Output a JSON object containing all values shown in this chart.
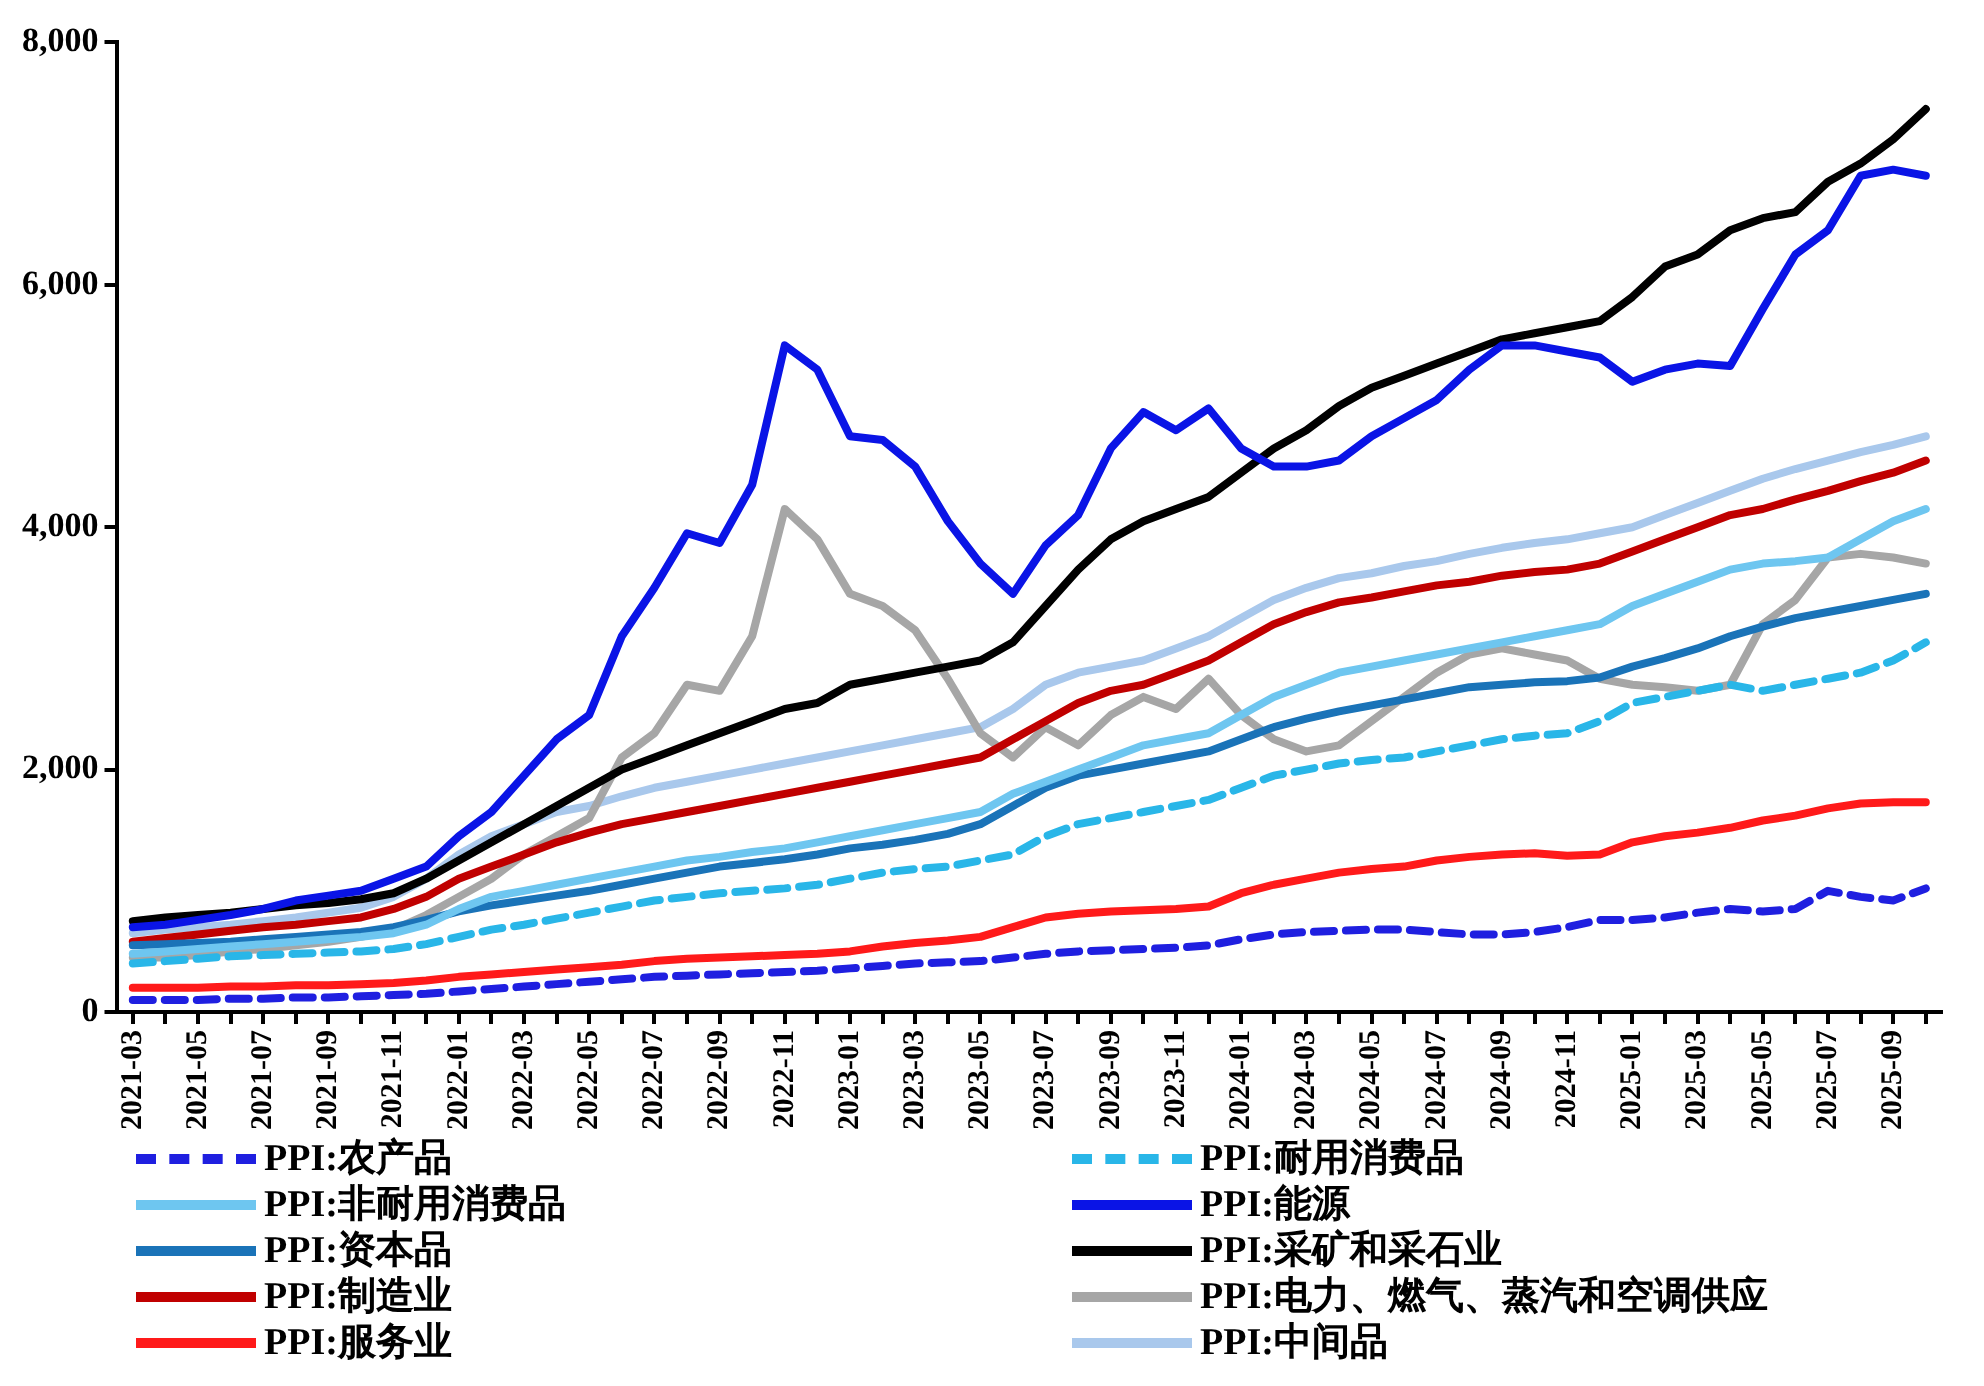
{
  "chart_data": {
    "type": "line",
    "categories": [
      "2021-03",
      null,
      "2021-05",
      null,
      "2021-07",
      null,
      "2021-09",
      null,
      "2021-11",
      null,
      "2022-01",
      null,
      "2022-03",
      null,
      "2022-05",
      null,
      "2022-07",
      null,
      "2022-09",
      null,
      "2022-11",
      null,
      "2023-01",
      null,
      "2023-03",
      null,
      "2023-05",
      null,
      "2023-07",
      null,
      "2023-09",
      null,
      "2023-11",
      null,
      "2024-01",
      null,
      "2024-03",
      null,
      "2024-05",
      null,
      "2024-07",
      null,
      "2024-09",
      null,
      "2024-11",
      null,
      "2025-01",
      null,
      "2025-03",
      null,
      "2025-05",
      null,
      "2025-07",
      null,
      "2025-09",
      null
    ],
    "ylim": [
      0,
      8000
    ],
    "yticks": [
      0,
      {
        "value": 2000,
        "label": "2,000"
      },
      {
        "value": 4000,
        "label": "4,000"
      },
      {
        "value": 6000,
        "label": "6,000"
      },
      {
        "value": 8000,
        "label": "8,000"
      }
    ],
    "grid": false,
    "legend": "bottom",
    "marker": "none",
    "series": [
      {
        "name": "PPI:农产品",
        "color": "#1f1fe0",
        "line_style": "dashed",
        "values": [
          100,
          100,
          100,
          110,
          110,
          120,
          120,
          130,
          140,
          150,
          170,
          190,
          210,
          230,
          250,
          270,
          290,
          300,
          310,
          320,
          330,
          340,
          360,
          380,
          400,
          410,
          420,
          450,
          480,
          500,
          510,
          520,
          530,
          550,
          600,
          640,
          660,
          670,
          680,
          680,
          660,
          640,
          640,
          660,
          700,
          760,
          760,
          780,
          820,
          850,
          830,
          850,
          1000,
          950,
          920,
          1020
        ]
      },
      {
        "name": "PPI:耐用消费品",
        "color": "#29b6e8",
        "line_style": "dashed",
        "values": [
          400,
          420,
          440,
          460,
          470,
          480,
          490,
          500,
          520,
          560,
          620,
          680,
          720,
          770,
          820,
          870,
          920,
          950,
          980,
          1000,
          1020,
          1050,
          1100,
          1150,
          1180,
          1200,
          1250,
          1300,
          1450,
          1550,
          1600,
          1650,
          1700,
          1750,
          1850,
          1950,
          2000,
          2050,
          2080,
          2100,
          2150,
          2200,
          2250,
          2280,
          2300,
          2400,
          2550,
          2600,
          2650,
          2700,
          2650,
          2700,
          2750,
          2800,
          2900,
          3050
        ]
      },
      {
        "name": "PPI:非耐用消费品",
        "color": "#6ec6f0",
        "line_style": "solid",
        "values": [
          480,
          500,
          520,
          540,
          560,
          580,
          600,
          620,
          650,
          720,
          850,
          950,
          1000,
          1050,
          1100,
          1150,
          1200,
          1250,
          1280,
          1320,
          1350,
          1400,
          1450,
          1500,
          1550,
          1600,
          1650,
          1800,
          1900,
          2000,
          2100,
          2200,
          2250,
          2300,
          2450,
          2600,
          2700,
          2800,
          2850,
          2900,
          2950,
          3000,
          3050,
          3100,
          3150,
          3200,
          3350,
          3450,
          3550,
          3650,
          3700,
          3720,
          3750,
          3900,
          4050,
          4150
        ]
      },
      {
        "name": "PPI:能源",
        "color": "#0a14e6",
        "line_style": "solid",
        "values": [
          700,
          720,
          760,
          800,
          850,
          920,
          960,
          1000,
          1100,
          1200,
          1450,
          1650,
          1950,
          2250,
          2450,
          3100,
          3500,
          3950,
          3870,
          4350,
          5500,
          5300,
          4750,
          4720,
          4500,
          4050,
          3700,
          3450,
          3850,
          4100,
          4650,
          4950,
          4800,
          4980,
          4650,
          4500,
          4500,
          4550,
          4750,
          4900,
          5050,
          5300,
          5500,
          5500,
          5450,
          5400,
          5200,
          5300,
          5350,
          5330,
          5800,
          6250,
          6450,
          6900,
          6950,
          6900
        ]
      },
      {
        "name": "PPI:资本品",
        "color": "#1a73b8",
        "line_style": "solid",
        "values": [
          550,
          560,
          570,
          580,
          600,
          620,
          640,
          660,
          700,
          760,
          830,
          880,
          920,
          960,
          1000,
          1050,
          1100,
          1150,
          1200,
          1230,
          1260,
          1300,
          1350,
          1380,
          1420,
          1470,
          1550,
          1700,
          1850,
          1950,
          2000,
          2050,
          2100,
          2150,
          2250,
          2350,
          2420,
          2480,
          2530,
          2580,
          2630,
          2680,
          2700,
          2720,
          2730,
          2760,
          2850,
          2920,
          3000,
          3100,
          3180,
          3250,
          3300,
          3350,
          3400,
          3450
        ]
      },
      {
        "name": "PPI:采矿和采石业",
        "color": "#000000",
        "line_style": "solid",
        "values": [
          750,
          780,
          800,
          820,
          850,
          880,
          900,
          930,
          980,
          1100,
          1250,
          1400,
          1550,
          1700,
          1850,
          2000,
          2100,
          2200,
          2300,
          2400,
          2500,
          2550,
          2700,
          2750,
          2800,
          2850,
          2900,
          3050,
          3350,
          3650,
          3900,
          4050,
          4150,
          4250,
          4450,
          4650,
          4800,
          5000,
          5150,
          5250,
          5350,
          5450,
          5550,
          5600,
          5650,
          5700,
          5900,
          6150,
          6250,
          6450,
          6550,
          6600,
          6850,
          7000,
          7200,
          7450
        ]
      },
      {
        "name": "PPI:制造业",
        "color": "#c00000",
        "line_style": "solid",
        "values": [
          580,
          610,
          640,
          670,
          700,
          720,
          750,
          780,
          850,
          950,
          1100,
          1200,
          1300,
          1400,
          1480,
          1550,
          1600,
          1650,
          1700,
          1750,
          1800,
          1850,
          1900,
          1950,
          2000,
          2050,
          2100,
          2250,
          2400,
          2550,
          2650,
          2700,
          2800,
          2900,
          3050,
          3200,
          3300,
          3380,
          3420,
          3470,
          3520,
          3550,
          3600,
          3630,
          3650,
          3700,
          3800,
          3900,
          4000,
          4100,
          4150,
          4230,
          4300,
          4380,
          4450,
          4550
        ]
      },
      {
        "name": "PPI:电力、燃气、蒸汽和空调供应",
        "color": "#a6a6a6",
        "line_style": "solid",
        "values": [
          450,
          450,
          470,
          500,
          520,
          550,
          580,
          620,
          680,
          800,
          950,
          1100,
          1300,
          1450,
          1600,
          2100,
          2300,
          2700,
          2650,
          3100,
          4150,
          3900,
          3450,
          3350,
          3150,
          2750,
          2300,
          2100,
          2350,
          2200,
          2450,
          2600,
          2500,
          2750,
          2450,
          2250,
          2150,
          2200,
          2400,
          2600,
          2800,
          2950,
          3000,
          2950,
          2900,
          2750,
          2700,
          2680,
          2650,
          2700,
          3200,
          3400,
          3750,
          3780,
          3750,
          3700
        ]
      },
      {
        "name": "PPI:服务业",
        "color": "#ff1a1a",
        "line_style": "solid",
        "values": [
          200,
          200,
          200,
          210,
          210,
          220,
          220,
          230,
          240,
          260,
          290,
          310,
          330,
          350,
          370,
          390,
          420,
          440,
          450,
          460,
          470,
          480,
          500,
          540,
          570,
          590,
          620,
          700,
          780,
          810,
          830,
          840,
          850,
          870,
          980,
          1050,
          1100,
          1150,
          1180,
          1200,
          1250,
          1280,
          1300,
          1310,
          1290,
          1300,
          1400,
          1450,
          1480,
          1520,
          1580,
          1620,
          1680,
          1720,
          1730,
          1730
        ]
      },
      {
        "name": "PPI:中间品",
        "color": "#a9c8ec",
        "line_style": "solid",
        "values": [
          650,
          680,
          700,
          720,
          750,
          780,
          820,
          860,
          950,
          1100,
          1300,
          1450,
          1550,
          1650,
          1700,
          1780,
          1850,
          1900,
          1950,
          2000,
          2050,
          2100,
          2150,
          2200,
          2250,
          2300,
          2350,
          2500,
          2700,
          2800,
          2850,
          2900,
          3000,
          3100,
          3250,
          3400,
          3500,
          3580,
          3620,
          3680,
          3720,
          3780,
          3830,
          3870,
          3900,
          3950,
          4000,
          4100,
          4200,
          4300,
          4400,
          4480,
          4550,
          4620,
          4680,
          4750
        ]
      }
    ]
  }
}
